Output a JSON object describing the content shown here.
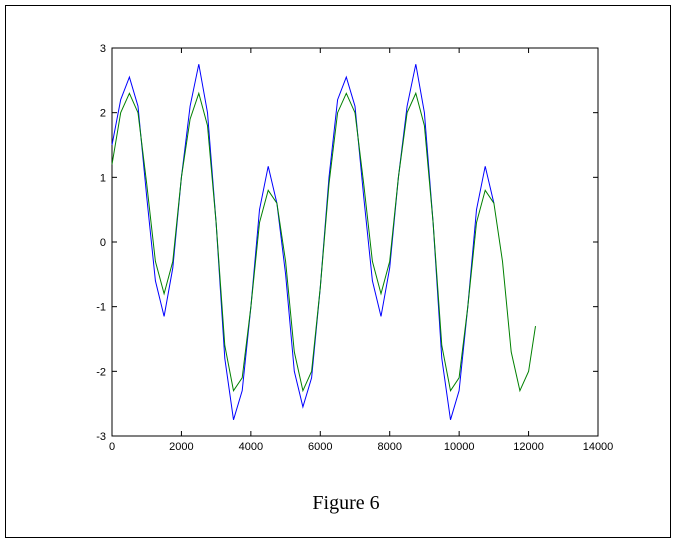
{
  "chart_data": {
    "type": "line",
    "caption": "Figure 6",
    "x": [
      0,
      250,
      500,
      750,
      1000,
      1250,
      1500,
      1750,
      2000,
      2250,
      2500,
      2750,
      3000,
      3250,
      3500,
      3750,
      4000,
      4250,
      4500,
      4750,
      5000,
      5250,
      5500,
      5750,
      6000,
      6250,
      6500,
      6750,
      7000,
      7250,
      7500,
      7750,
      8000,
      8250,
      8500,
      8750,
      9000,
      9250,
      9500,
      9750,
      10000,
      10250,
      10500,
      10750,
      11000,
      11250,
      11500,
      11750,
      12000,
      12200
    ],
    "series": [
      {
        "color": "#0000ff",
        "values": [
          1.5,
          2.2,
          2.55,
          2.1,
          0.7,
          -0.6,
          -1.15,
          -0.4,
          1.0,
          2.1,
          2.75,
          2.0,
          0.3,
          -1.8,
          -2.75,
          -2.3,
          -1.0,
          0.5,
          1.17,
          0.6,
          -0.5,
          -2.0,
          -2.55,
          -2.1,
          -0.7,
          1.0,
          2.2,
          2.55,
          2.1,
          0.7,
          -0.6,
          -1.15,
          -0.4,
          1.0,
          2.1,
          2.75,
          2.0,
          0.3,
          -1.8,
          -2.75,
          -2.3,
          -1.0,
          0.5,
          1.17,
          0.6,
          null,
          null,
          null,
          null,
          null
        ]
      },
      {
        "color": "#008000",
        "values": [
          1.2,
          2.0,
          2.3,
          2.0,
          0.9,
          -0.3,
          -0.8,
          -0.3,
          1.0,
          1.9,
          2.3,
          1.8,
          0.3,
          -1.6,
          -2.3,
          -2.1,
          -1.0,
          0.3,
          0.8,
          0.6,
          -0.3,
          -1.7,
          -2.3,
          -2.0,
          -0.7,
          0.9,
          2.0,
          2.3,
          2.0,
          0.9,
          -0.3,
          -0.8,
          -0.3,
          1.0,
          2.0,
          2.3,
          1.8,
          0.3,
          -1.6,
          -2.3,
          -2.1,
          -1.0,
          0.3,
          0.8,
          0.6,
          -0.3,
          -1.7,
          -2.3,
          -2.0,
          -1.3
        ]
      }
    ],
    "xlim": [
      0,
      14000
    ],
    "xticks": [
      0,
      2000,
      4000,
      6000,
      8000,
      10000,
      12000,
      14000
    ],
    "ylim": [
      -3,
      3
    ],
    "yticks": [
      -3,
      -2,
      -1,
      0,
      1,
      2,
      3
    ]
  }
}
